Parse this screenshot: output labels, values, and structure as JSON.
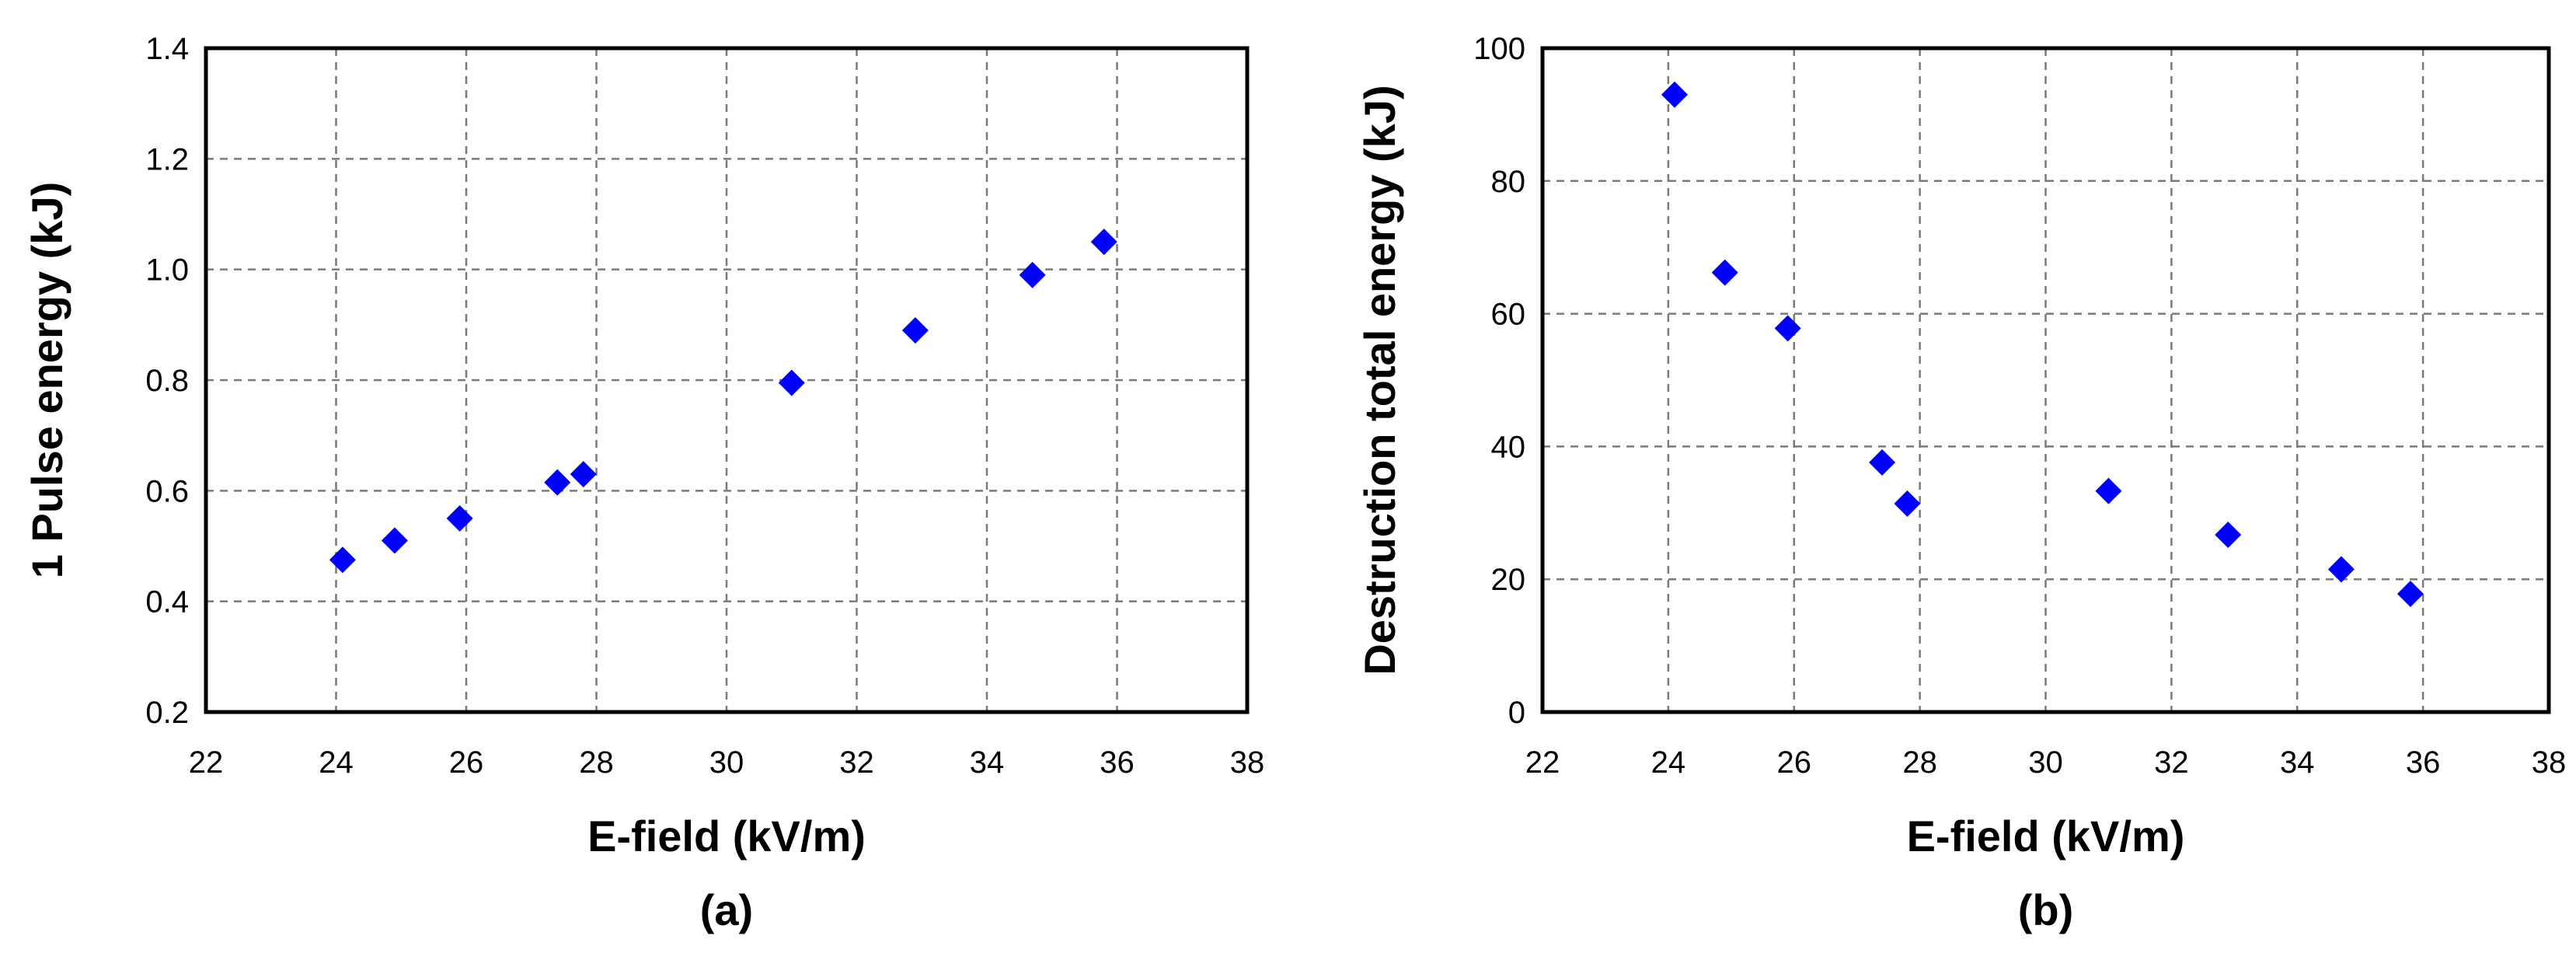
{
  "chart_data": [
    {
      "type": "scatter",
      "title": "",
      "caption": "(a)",
      "xlabel": "E-field (kV/m)",
      "ylabel": "1 Pulse energy (kJ)",
      "xlim": [
        22,
        38
      ],
      "ylim": [
        0.2,
        1.4
      ],
      "xticks": [
        "22",
        "24",
        "26",
        "28",
        "30",
        "32",
        "34",
        "36",
        "38"
      ],
      "yticks": [
        "0.2",
        "0.4",
        "0.6",
        "0.8",
        "1.0",
        "1.2",
        "1.4"
      ],
      "grid": true,
      "marker": "diamond",
      "color": "#0000ff",
      "series": [
        {
          "x": [
            24.1,
            24.9,
            25.9,
            27.4,
            27.8,
            31.0,
            32.9,
            34.7,
            35.8
          ],
          "y": [
            0.475,
            0.51,
            0.55,
            0.615,
            0.63,
            0.795,
            0.89,
            0.99,
            1.05
          ]
        }
      ]
    },
    {
      "type": "scatter",
      "title": "",
      "caption": "(b)",
      "xlabel": "E-field (kV/m)",
      "ylabel": "Destruction total energy (kJ)",
      "xlim": [
        22,
        38
      ],
      "ylim": [
        0,
        100
      ],
      "xticks": [
        "22",
        "24",
        "26",
        "28",
        "30",
        "32",
        "34",
        "36",
        "38"
      ],
      "yticks": [
        "0",
        "20",
        "40",
        "60",
        "80",
        "100"
      ],
      "grid": true,
      "marker": "diamond",
      "color": "#0000ff",
      "series": [
        {
          "x": [
            24.1,
            24.9,
            25.9,
            27.4,
            27.8,
            31.0,
            32.9,
            34.7,
            35.8
          ],
          "y": [
            93,
            66.2,
            57.8,
            37.6,
            31.4,
            33.3,
            26.7,
            21.5,
            17.8
          ]
        }
      ]
    }
  ]
}
